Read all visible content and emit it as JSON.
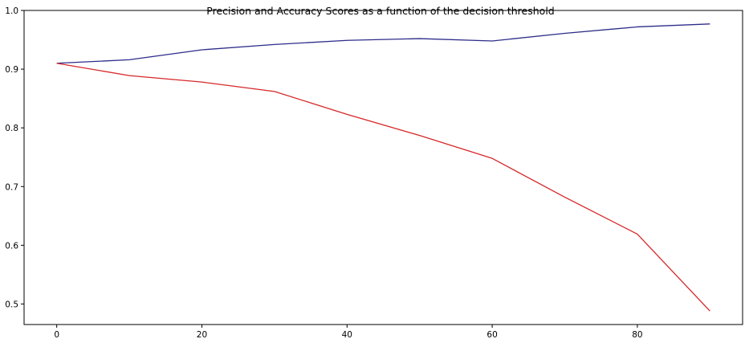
{
  "chart_data": {
    "type": "line",
    "title": "Precision and Accuracy Scores as a function of the decision threshold",
    "xlabel": "",
    "ylabel": "",
    "xlim": [
      -4.5,
      94.5
    ],
    "ylim": [
      0.465,
      1.0
    ],
    "xticks": [
      0,
      20,
      40,
      60,
      80
    ],
    "yticks": [
      0.5,
      0.6,
      0.7,
      0.8,
      0.9,
      1.0
    ],
    "xtick_labels": [
      "0",
      "20",
      "40",
      "60",
      "80"
    ],
    "ytick_labels": [
      "0.5",
      "0.6",
      "0.7",
      "0.8",
      "0.9",
      "1.0"
    ],
    "grid": false,
    "legend": "none",
    "x": [
      0,
      10,
      20,
      30,
      40,
      50,
      60,
      70,
      80,
      90
    ],
    "series": [
      {
        "color": "#2d2d8a",
        "values": [
          0.91,
          0.916,
          0.933,
          0.942,
          0.949,
          0.952,
          0.948,
          0.961,
          0.972,
          0.977
        ]
      },
      {
        "color": "#d62728",
        "values": [
          0.91,
          0.889,
          0.878,
          0.862,
          0.823,
          0.787,
          0.748,
          0.682,
          0.619,
          0.488
        ]
      }
    ]
  }
}
